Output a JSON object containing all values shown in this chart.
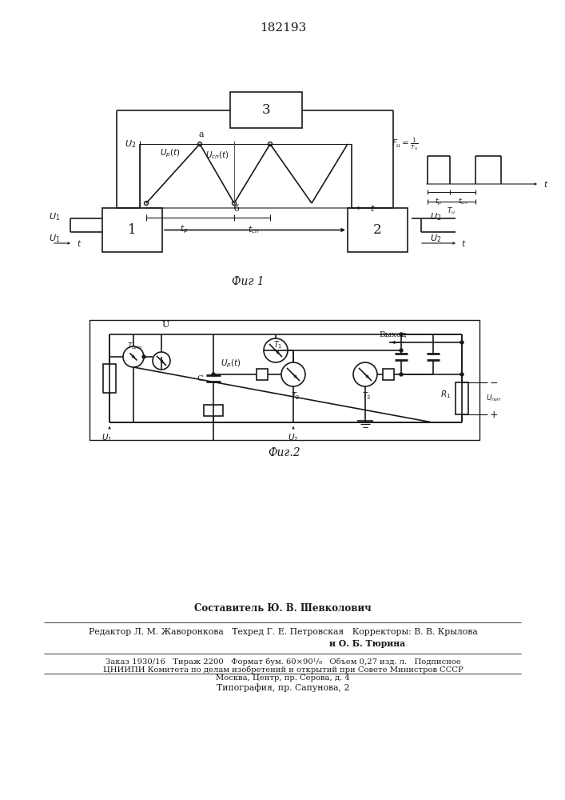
{
  "title_number": "182193",
  "fig1_caption": "Фиг 1",
  "fig2_caption": "Фиг.2",
  "line_color": "#1a1a1a",
  "footer_composer": "Составитель Ю. В. Шевколович",
  "footer_editor": "Редактор Л. М. Жаворонкова   Техред Г. Е. Петровская   Корректоры: В. В. Крылова",
  "footer_corrector": "и О. Б. Тюрина",
  "footer_order": "Заказ 1930/16   Тираж 2200   Формат бум. 60×90¹/₈   Объем 0,27 изд. л.   Подписное",
  "footer_cniip": "ЦНИИПИ Комитета по делам изобретений и открытий при Совете Министров СССР",
  "footer_moscow": "Москва, Центр, пр. Серова, д. 4",
  "footer_typo": "Типография, пр. Сапунова, 2"
}
